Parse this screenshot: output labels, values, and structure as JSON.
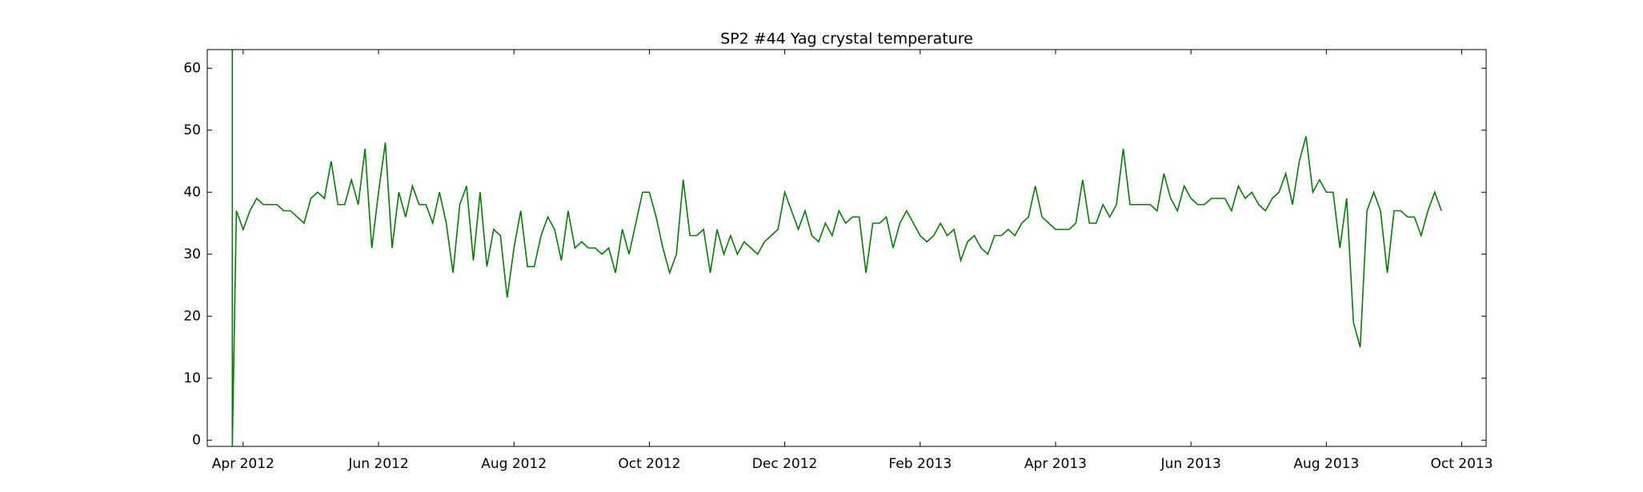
{
  "chart_data": {
    "type": "line",
    "title": "SP2 #44 Yag crystal temperature",
    "color": "#008000",
    "xlim": [
      2.47,
      21.36
    ],
    "ylim": [
      -1,
      63
    ],
    "yticks": [
      0,
      10,
      20,
      30,
      40,
      50,
      60
    ],
    "xticks": [
      {
        "value": 3,
        "label": "Apr 2012"
      },
      {
        "value": 5,
        "label": "Jun 2012"
      },
      {
        "value": 7,
        "label": "Aug 2012"
      },
      {
        "value": 9,
        "label": "Oct 2012"
      },
      {
        "value": 11,
        "label": "Dec 2012"
      },
      {
        "value": 13,
        "label": "Feb 2013"
      },
      {
        "value": 15,
        "label": "Apr 2013"
      },
      {
        "value": 17,
        "label": "Jun 2013"
      },
      {
        "value": 19,
        "label": "Aug 2013"
      },
      {
        "value": 21,
        "label": "Oct 2013"
      }
    ],
    "x": [
      2.84,
      2.84,
      2.9,
      3.0,
      3.1,
      3.2,
      3.3,
      3.4,
      3.5,
      3.6,
      3.7,
      3.8,
      3.9,
      4.0,
      4.1,
      4.2,
      4.3,
      4.4,
      4.5,
      4.6,
      4.7,
      4.8,
      4.9,
      5.0,
      5.1,
      5.2,
      5.3,
      5.4,
      5.5,
      5.6,
      5.7,
      5.8,
      5.9,
      6.0,
      6.1,
      6.2,
      6.3,
      6.4,
      6.5,
      6.6,
      6.7,
      6.8,
      6.9,
      7.0,
      7.1,
      7.2,
      7.3,
      7.4,
      7.5,
      7.6,
      7.7,
      7.8,
      7.9,
      8.0,
      8.1,
      8.2,
      8.3,
      8.4,
      8.5,
      8.6,
      8.7,
      8.8,
      8.9,
      9.0,
      9.1,
      9.2,
      9.3,
      9.4,
      9.5,
      9.6,
      9.7,
      9.8,
      9.9,
      10.0,
      10.1,
      10.2,
      10.3,
      10.4,
      10.5,
      10.6,
      10.7,
      10.8,
      10.9,
      11.0,
      11.1,
      11.2,
      11.3,
      11.4,
      11.5,
      11.6,
      11.7,
      11.8,
      11.9,
      12.0,
      12.1,
      12.2,
      12.3,
      12.4,
      12.5,
      12.6,
      12.7,
      12.8,
      12.9,
      13.0,
      13.1,
      13.2,
      13.3,
      13.4,
      13.5,
      13.6,
      13.7,
      13.8,
      13.9,
      14.0,
      14.1,
      14.2,
      14.3,
      14.4,
      14.5,
      14.6,
      14.7,
      14.8,
      14.9,
      15.0,
      15.1,
      15.2,
      15.3,
      15.4,
      15.5,
      15.6,
      15.7,
      15.8,
      15.9,
      16.0,
      16.1,
      16.2,
      16.3,
      16.4,
      16.5,
      16.6,
      16.7,
      16.8,
      16.9,
      17.0,
      17.1,
      17.2,
      17.3,
      17.4,
      17.5,
      17.6,
      17.7,
      17.8,
      17.9,
      18.0,
      18.1,
      18.2,
      18.3,
      18.4,
      18.5,
      18.6,
      18.7,
      18.8,
      18.9,
      19.0,
      19.1,
      19.2,
      19.3,
      19.4,
      19.5,
      19.6,
      19.7,
      19.8,
      19.9,
      20.0,
      20.1,
      20.2,
      20.3,
      20.4,
      20.5,
      20.6,
      20.7
    ],
    "values": [
      63,
      -1,
      37,
      34,
      37,
      39,
      38,
      38,
      38,
      37,
      37,
      36,
      35,
      39,
      40,
      39,
      45,
      38,
      38,
      42,
      38,
      47,
      31,
      40,
      48,
      31,
      40,
      36,
      41,
      38,
      38,
      35,
      40,
      35,
      27,
      38,
      41,
      29,
      40,
      28,
      34,
      33,
      23,
      31,
      37,
      28,
      28,
      33,
      36,
      34,
      29,
      37,
      31,
      32,
      31,
      31,
      30,
      31,
      27,
      34,
      30,
      35,
      40,
      40,
      36,
      31,
      27,
      30,
      42,
      33,
      33,
      34,
      27,
      34,
      30,
      33,
      30,
      32,
      31,
      30,
      32,
      33,
      34,
      40,
      37,
      34,
      37,
      33,
      32,
      35,
      33,
      37,
      35,
      36,
      36,
      27,
      35,
      35,
      36,
      31,
      35,
      37,
      35,
      33,
      32,
      33,
      35,
      33,
      34,
      29,
      32,
      33,
      31,
      30,
      33,
      33,
      34,
      33,
      35,
      36,
      41,
      36,
      35,
      34,
      34,
      34,
      35,
      42,
      35,
      35,
      38,
      36,
      38,
      47,
      38,
      38,
      38,
      38,
      37,
      43,
      39,
      37,
      41,
      39,
      38,
      38,
      39,
      39,
      39,
      37,
      41,
      39,
      40,
      38,
      37,
      39,
      40,
      43,
      38,
      45,
      49,
      40,
      42,
      40,
      40,
      31,
      39,
      19,
      15,
      37,
      40,
      37,
      27,
      37,
      37,
      36,
      36,
      33,
      37,
      40,
      37
    ]
  }
}
